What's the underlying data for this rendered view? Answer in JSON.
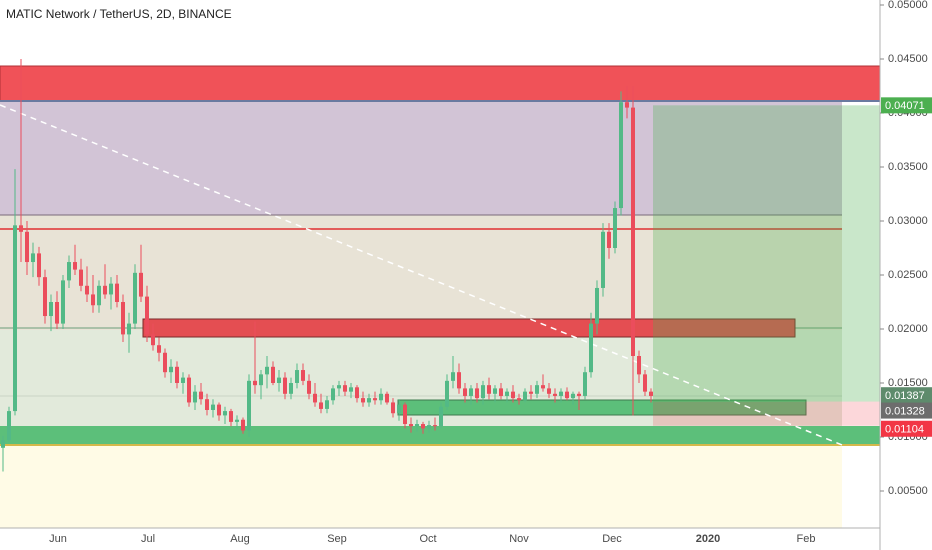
{
  "chart_data": {
    "type": "candlestick",
    "title": "MATIC Network / TetherUS, 2D, BINANCE",
    "candles": [
      [
        0.009,
        0.0101,
        0.0068,
        0.0097
      ],
      [
        0.0097,
        0.0128,
        0.0095,
        0.0124
      ],
      [
        0.0124,
        0.0348,
        0.012,
        0.0296
      ],
      [
        0.0296,
        0.045,
        0.0262,
        0.029
      ],
      [
        0.029,
        0.03,
        0.025,
        0.0262
      ],
      [
        0.0262,
        0.028,
        0.0248,
        0.027
      ],
      [
        0.027,
        0.0276,
        0.024,
        0.0248
      ],
      [
        0.0248,
        0.0255,
        0.0205,
        0.0212
      ],
      [
        0.0212,
        0.0232,
        0.0198,
        0.0225
      ],
      [
        0.0225,
        0.0235,
        0.02,
        0.0205
      ],
      [
        0.0205,
        0.025,
        0.02,
        0.0245
      ],
      [
        0.0245,
        0.0268,
        0.0238,
        0.0262
      ],
      [
        0.0262,
        0.0278,
        0.025,
        0.0255
      ],
      [
        0.0255,
        0.0265,
        0.0235,
        0.024
      ],
      [
        0.024,
        0.0258,
        0.0225,
        0.0232
      ],
      [
        0.0232,
        0.025,
        0.0215,
        0.0222
      ],
      [
        0.0222,
        0.0245,
        0.0215,
        0.024
      ],
      [
        0.024,
        0.026,
        0.0228,
        0.0232
      ],
      [
        0.0232,
        0.0248,
        0.0218,
        0.0242
      ],
      [
        0.0242,
        0.025,
        0.022,
        0.0225
      ],
      [
        0.0225,
        0.0232,
        0.0188,
        0.0195
      ],
      [
        0.0195,
        0.0215,
        0.0178,
        0.0205
      ],
      [
        0.0205,
        0.026,
        0.02,
        0.0252
      ],
      [
        0.0252,
        0.0278,
        0.0225,
        0.023
      ],
      [
        0.023,
        0.024,
        0.0188,
        0.0195
      ],
      [
        0.0195,
        0.0205,
        0.018,
        0.0185
      ],
      [
        0.0185,
        0.0192,
        0.017,
        0.0178
      ],
      [
        0.0178,
        0.0182,
        0.0155,
        0.016
      ],
      [
        0.016,
        0.0172,
        0.015,
        0.0165
      ],
      [
        0.0165,
        0.017,
        0.0145,
        0.015
      ],
      [
        0.015,
        0.016,
        0.014,
        0.0155
      ],
      [
        0.0155,
        0.0158,
        0.0128,
        0.0132
      ],
      [
        0.0132,
        0.0148,
        0.0125,
        0.0142
      ],
      [
        0.0142,
        0.015,
        0.013,
        0.0135
      ],
      [
        0.0135,
        0.014,
        0.012,
        0.0125
      ],
      [
        0.0125,
        0.0135,
        0.0118,
        0.013
      ],
      [
        0.013,
        0.0132,
        0.0115,
        0.012
      ],
      [
        0.012,
        0.0128,
        0.0112,
        0.0124
      ],
      [
        0.0124,
        0.0126,
        0.011,
        0.0114
      ],
      [
        0.0114,
        0.012,
        0.0108,
        0.0116
      ],
      [
        0.0116,
        0.0118,
        0.0103,
        0.0106
      ],
      [
        0.0106,
        0.0158,
        0.01,
        0.0152
      ],
      [
        0.0152,
        0.0207,
        0.014,
        0.0148
      ],
      [
        0.0148,
        0.0162,
        0.0135,
        0.0158
      ],
      [
        0.0158,
        0.0175,
        0.0145,
        0.0165
      ],
      [
        0.0165,
        0.017,
        0.0148,
        0.015
      ],
      [
        0.015,
        0.0162,
        0.0142,
        0.0155
      ],
      [
        0.0155,
        0.016,
        0.0135,
        0.014
      ],
      [
        0.014,
        0.0155,
        0.0135,
        0.015
      ],
      [
        0.015,
        0.0168,
        0.0145,
        0.0162
      ],
      [
        0.0162,
        0.0168,
        0.0148,
        0.0152
      ],
      [
        0.0152,
        0.0158,
        0.0135,
        0.014
      ],
      [
        0.014,
        0.015,
        0.0128,
        0.0132
      ],
      [
        0.0132,
        0.014,
        0.0122,
        0.0126
      ],
      [
        0.0126,
        0.0138,
        0.0122,
        0.0134
      ],
      [
        0.0134,
        0.0148,
        0.013,
        0.0145
      ],
      [
        0.0145,
        0.0152,
        0.0138,
        0.0148
      ],
      [
        0.0148,
        0.0152,
        0.0138,
        0.0142
      ],
      [
        0.0142,
        0.015,
        0.0136,
        0.0146
      ],
      [
        0.0146,
        0.0148,
        0.0132,
        0.0136
      ],
      [
        0.0136,
        0.0142,
        0.0128,
        0.0132
      ],
      [
        0.0132,
        0.014,
        0.0128,
        0.0136
      ],
      [
        0.0136,
        0.0142,
        0.013,
        0.0134
      ],
      [
        0.0134,
        0.0145,
        0.013,
        0.014
      ],
      [
        0.014,
        0.0142,
        0.013,
        0.0132
      ],
      [
        0.0132,
        0.0136,
        0.0118,
        0.0122
      ],
      [
        0.0122,
        0.0135,
        0.0115,
        0.013
      ],
      [
        0.013,
        0.0132,
        0.0108,
        0.0112
      ],
      [
        0.0112,
        0.0118,
        0.0104,
        0.011
      ],
      [
        0.011,
        0.0116,
        0.0105,
        0.0112
      ],
      [
        0.0112,
        0.0114,
        0.0103,
        0.0108
      ],
      [
        0.0108,
        0.0115,
        0.0104,
        0.0111
      ],
      [
        0.0111,
        0.0118,
        0.0106,
        0.011
      ],
      [
        0.011,
        0.0132,
        0.0108,
        0.0128
      ],
      [
        0.0128,
        0.0158,
        0.0125,
        0.0152
      ],
      [
        0.0152,
        0.0175,
        0.0145,
        0.016
      ],
      [
        0.016,
        0.0168,
        0.014,
        0.0145
      ],
      [
        0.0145,
        0.015,
        0.0132,
        0.0138
      ],
      [
        0.0138,
        0.0148,
        0.013,
        0.0145
      ],
      [
        0.0145,
        0.015,
        0.0132,
        0.0136
      ],
      [
        0.0136,
        0.0152,
        0.013,
        0.0148
      ],
      [
        0.0148,
        0.0155,
        0.0135,
        0.014
      ],
      [
        0.014,
        0.0148,
        0.0132,
        0.0145
      ],
      [
        0.0145,
        0.015,
        0.0135,
        0.0138
      ],
      [
        0.0138,
        0.0145,
        0.0132,
        0.0142
      ],
      [
        0.0142,
        0.0148,
        0.0132,
        0.0136
      ],
      [
        0.0136,
        0.014,
        0.013,
        0.0134
      ],
      [
        0.0134,
        0.0145,
        0.0132,
        0.0142
      ],
      [
        0.0142,
        0.0148,
        0.0135,
        0.014
      ],
      [
        0.014,
        0.0152,
        0.0136,
        0.0148
      ],
      [
        0.0148,
        0.0158,
        0.0142,
        0.0145
      ],
      [
        0.0145,
        0.015,
        0.0136,
        0.014
      ],
      [
        0.014,
        0.0145,
        0.0132,
        0.0138
      ],
      [
        0.0138,
        0.0145,
        0.0132,
        0.0142
      ],
      [
        0.0142,
        0.0146,
        0.0134,
        0.0136
      ],
      [
        0.0136,
        0.0142,
        0.013,
        0.014
      ],
      [
        0.014,
        0.0142,
        0.0125,
        0.0138
      ],
      [
        0.0138,
        0.0165,
        0.0135,
        0.016
      ],
      [
        0.016,
        0.0215,
        0.0155,
        0.0205
      ],
      [
        0.0205,
        0.0245,
        0.0195,
        0.0238
      ],
      [
        0.0238,
        0.0298,
        0.023,
        0.029
      ],
      [
        0.029,
        0.0298,
        0.0265,
        0.0275
      ],
      [
        0.0275,
        0.0318,
        0.027,
        0.0312
      ],
      [
        0.0312,
        0.042,
        0.0305,
        0.041
      ],
      [
        0.041,
        0.0425,
        0.0395,
        0.0405
      ],
      [
        0.0405,
        0.0425,
        0.012,
        0.0175
      ],
      [
        0.0175,
        0.018,
        0.015,
        0.0158
      ],
      [
        0.0158,
        0.0162,
        0.0138,
        0.0142
      ],
      [
        0.0142,
        0.0145,
        0.0132,
        0.0138
      ]
    ],
    "colors": {
      "up": "#53b987",
      "down": "#eb4d5c"
    },
    "ylim": [
      0,
      0.05
    ],
    "yticks": [
      {
        "value": 0.005,
        "label": "0.00500"
      },
      {
        "value": 0.01,
        "label": "0.01000"
      },
      {
        "value": 0.015,
        "label": "0.01500"
      },
      {
        "value": 0.02,
        "label": "0.02000"
      },
      {
        "value": 0.025,
        "label": "0.02500"
      },
      {
        "value": 0.03,
        "label": "0.03000"
      },
      {
        "value": 0.035,
        "label": "0.03500"
      },
      {
        "value": 0.04,
        "label": "0.04000"
      },
      {
        "value": 0.045,
        "label": "0.04500"
      },
      {
        "value": 0.05,
        "label": "0.05000"
      }
    ],
    "xlabels": [
      "Jun",
      "Jul",
      "Aug",
      "Sep",
      "Oct",
      "Nov",
      "Dec",
      "2020",
      "Feb"
    ],
    "price_tags": [
      {
        "value": 0.04071,
        "color": "#4caf50"
      },
      {
        "value": 0.01387,
        "color": "#5e8b6c"
      },
      {
        "value": 0.01328,
        "color": "#6d6d6d"
      },
      {
        "value": 0.01104,
        "color": "#f23645"
      }
    ]
  }
}
